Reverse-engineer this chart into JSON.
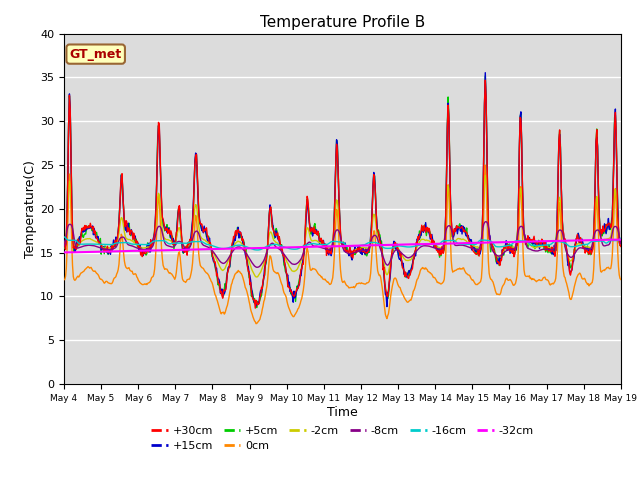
{
  "title": "Temperature Profile B",
  "xlabel": "Time",
  "ylabel": "Temperature(C)",
  "ylim": [
    0,
    40
  ],
  "x_tick_labels": [
    "May 4",
    "May 5",
    "May 6",
    "May 7",
    "May 8",
    "May 9",
    "May 10",
    "May 11",
    "May 12",
    "May 13",
    "May 14",
    "May 15",
    "May 16",
    "May 17",
    "May 18",
    "May 19"
  ],
  "annotation": "GT_met",
  "bg_color": "#dcdcdc",
  "grid_color": "#ffffff",
  "series_colors": {
    "+30cm": "#ff0000",
    "+15cm": "#0000cc",
    "+5cm": "#00cc00",
    "0cm": "#ff8800",
    "-2cm": "#cccc00",
    "-8cm": "#880088",
    "-16cm": "#00cccc",
    "-32cm": "#ff00ff"
  },
  "legend_order": [
    "+30cm",
    "+15cm",
    "+5cm",
    "0cm",
    "-2cm",
    "-8cm",
    "-16cm",
    "-32cm"
  ]
}
